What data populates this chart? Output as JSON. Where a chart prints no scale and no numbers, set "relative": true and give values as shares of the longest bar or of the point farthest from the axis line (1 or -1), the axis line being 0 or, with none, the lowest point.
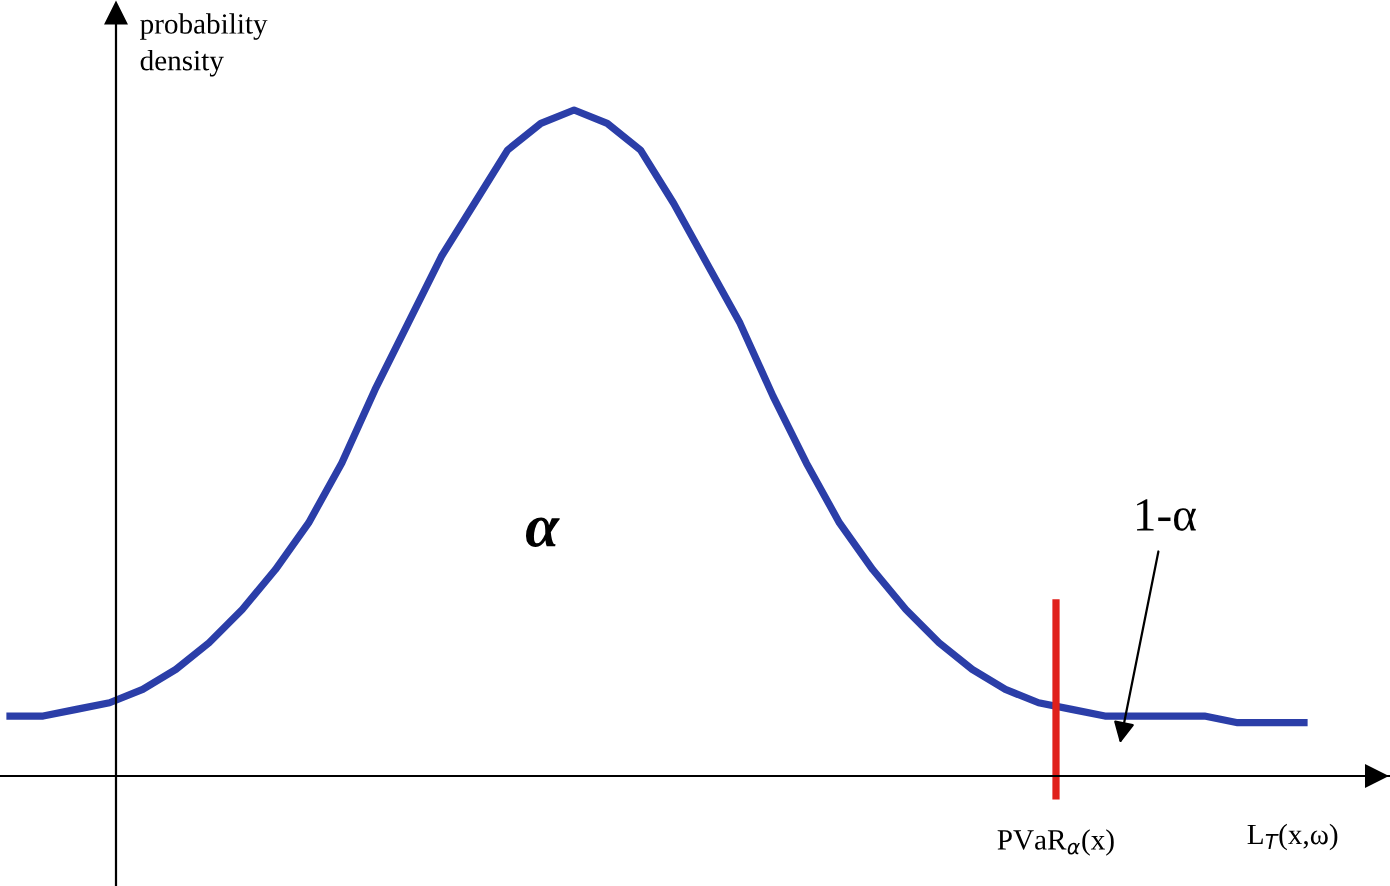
{
  "chart_data": {
    "type": "line",
    "relative": true,
    "ylabel": "probability\ndensity",
    "xlabel": "L$_{T}$(x,ω)",
    "categories": [
      null,
      null,
      null,
      null,
      null,
      null,
      null,
      null,
      null,
      null,
      null,
      null,
      null,
      null,
      null,
      null,
      null,
      null,
      null,
      null,
      null,
      null,
      null,
      null,
      null,
      null,
      null,
      null,
      null,
      null,
      null,
      null,
      null,
      null,
      null,
      null,
      null,
      null,
      null,
      null
    ],
    "series": [
      {
        "color": "#2b3ea8",
        "values": [
          0.09,
          0.09,
          0.1,
          0.11,
          0.13,
          0.16,
          0.2,
          0.25,
          0.31,
          0.38,
          0.47,
          0.58,
          0.68,
          0.78,
          0.86,
          0.94,
          0.98,
          1.0,
          0.98,
          0.94,
          0.86,
          0.77,
          0.68,
          0.57,
          0.47,
          0.38,
          0.31,
          0.25,
          0.2,
          0.16,
          0.13,
          0.11,
          0.1,
          0.09,
          0.09,
          0.09,
          0.09,
          0.08,
          0.08,
          0.08
        ]
      }
    ],
    "annotations": [
      "α",
      "1-α",
      "PVaR$_{α}$(x)"
    ],
    "marker": "none",
    "line_style": "solid",
    "grid": false,
    "legend": false
  }
}
